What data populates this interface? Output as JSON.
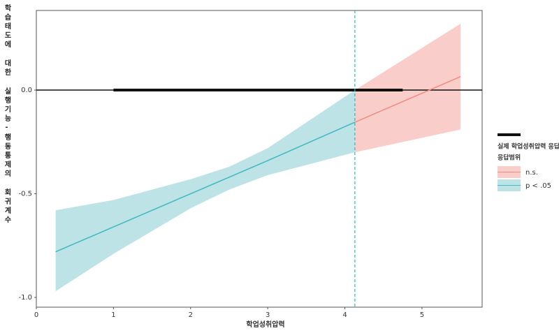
{
  "chart_data": {
    "type": "johnson-neyman",
    "y_label": "학습태도에 대한 실행기능-행동통제의 회귀계수",
    "x_label": "학업성취압력",
    "xlim": [
      0,
      5.78
    ],
    "xticks": [
      0,
      1,
      2,
      3,
      4,
      5
    ],
    "ylim": [
      -1.047,
      0.384
    ],
    "yticks": [
      {
        "value": 0,
        "label": "0.0"
      },
      -0.5,
      {
        "value": -1,
        "label": "-1.0"
      }
    ],
    "threshold": 4.13,
    "threshold_color": "#2bb3bd",
    "range": [
      1,
      4.75
    ],
    "range_name": "실제 학업성취압력 응답범위",
    "range_color": "#111111",
    "legend_title": "응답범위",
    "series": [
      {
        "name": "n.s.",
        "color": "#f08a80",
        "fill": "#f9cdca",
        "x": [
          4.13,
          5.5
        ],
        "values": [
          -0.155,
          0.065
        ],
        "upper": [
          0.0,
          0.32
        ],
        "lower": [
          -0.3,
          -0.19
        ]
      },
      {
        "name": "p < .05",
        "color": "#3fb8c0",
        "fill": "#bde3e7",
        "x": [
          0.25,
          1,
          2,
          2.5,
          3,
          4.13
        ],
        "values": [
          -0.78,
          -0.66,
          -0.5,
          -0.42,
          -0.34,
          -0.155
        ],
        "upper": [
          -0.58,
          -0.53,
          -0.43,
          -0.37,
          -0.28,
          0.0
        ],
        "lower": [
          -0.97,
          -0.79,
          -0.57,
          -0.48,
          -0.41,
          -0.3
        ]
      }
    ]
  }
}
